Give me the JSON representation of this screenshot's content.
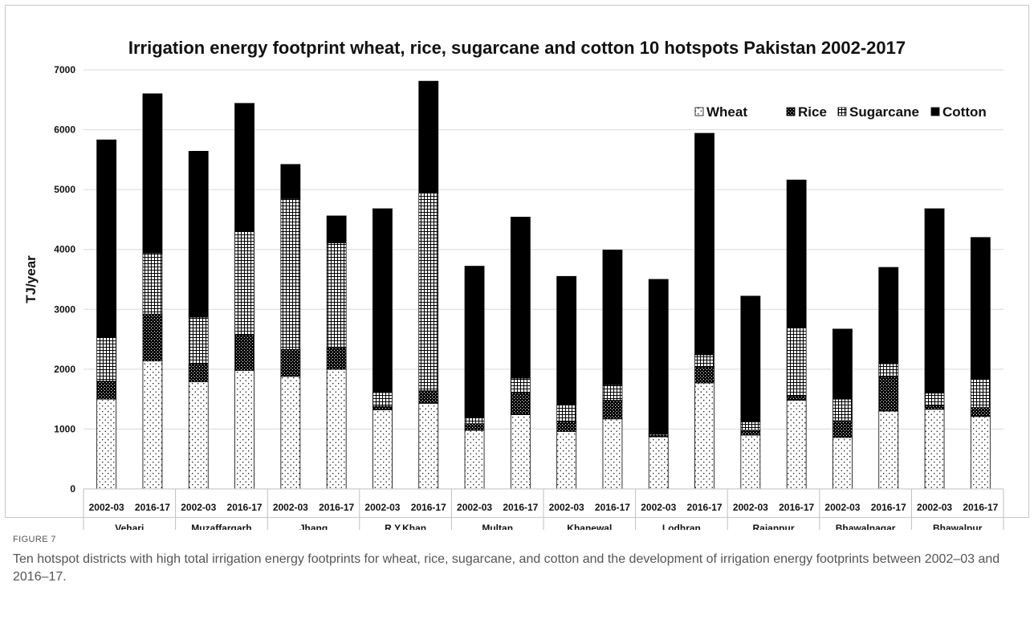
{
  "figure": {
    "label": "FIGURE 7",
    "caption": "Ten hotspot districts with high total irrigation energy footprints for wheat, rice, sugarcane, and cotton and the development of irrigation energy footprints between 2002–03 and 2016–17."
  },
  "chart_data": {
    "type": "bar",
    "stacked": true,
    "title": "Irrigation energy footprint wheat, rice, sugarcane and cotton 10 hotspots Pakistan 2002-2017",
    "ylabel": "TJ/year",
    "xlabel": "",
    "ylim": [
      0,
      7000
    ],
    "yticks": [
      0,
      1000,
      2000,
      3000,
      4000,
      5000,
      6000,
      7000
    ],
    "grid": true,
    "legend_position": "top-right",
    "periods": [
      "2002-03",
      "2016-17"
    ],
    "groups": [
      "Vehari",
      "Muzaffargarh",
      "Jhang",
      "R.Y.Khan",
      "Multan",
      "Khanewal",
      "Lodhran",
      "Rajanpur",
      "Bhawalnagar",
      "Bhawalpur"
    ],
    "categories": [
      "Vehari 2002-03",
      "Vehari 2016-17",
      "Muzaffargarh 2002-03",
      "Muzaffargarh 2016-17",
      "Jhang 2002-03",
      "Jhang 2016-17",
      "R.Y.Khan 2002-03",
      "R.Y.Khan 2016-17",
      "Multan 2002-03",
      "Multan 2016-17",
      "Khanewal 2002-03",
      "Khanewal 2016-17",
      "Lodhran 2002-03",
      "Lodhran 2016-17",
      "Rajanpur 2002-03",
      "Rajanpur 2016-17",
      "Bhawalnagar 2002-03",
      "Bhawalnagar 2016-17",
      "Bhawalpur 2002-03",
      "Bhawalpur 2016-17"
    ],
    "series": [
      {
        "name": "Wheat",
        "pattern": "dots",
        "values": [
          1500,
          2140,
          1790,
          1980,
          1880,
          2000,
          1320,
          1430,
          980,
          1240,
          960,
          1170,
          870,
          1770,
          900,
          1480,
          860,
          1300,
          1330,
          1210
        ]
      },
      {
        "name": "Rice",
        "pattern": "checker",
        "values": [
          300,
          780,
          300,
          590,
          450,
          370,
          60,
          210,
          110,
          370,
          160,
          310,
          30,
          270,
          80,
          70,
          280,
          580,
          70,
          150
        ]
      },
      {
        "name": "Sugarcane",
        "pattern": "grid",
        "values": [
          740,
          1020,
          780,
          1740,
          2520,
          1740,
          230,
          3310,
          110,
          240,
          280,
          260,
          30,
          200,
          140,
          1150,
          360,
          210,
          200,
          480
        ]
      },
      {
        "name": "Cotton",
        "pattern": "solid",
        "values": [
          3290,
          2660,
          2770,
          2130,
          570,
          450,
          3070,
          1860,
          2520,
          2690,
          2150,
          2250,
          2570,
          3700,
          2100,
          2460,
          1170,
          1610,
          3080,
          2360
        ]
      }
    ]
  }
}
